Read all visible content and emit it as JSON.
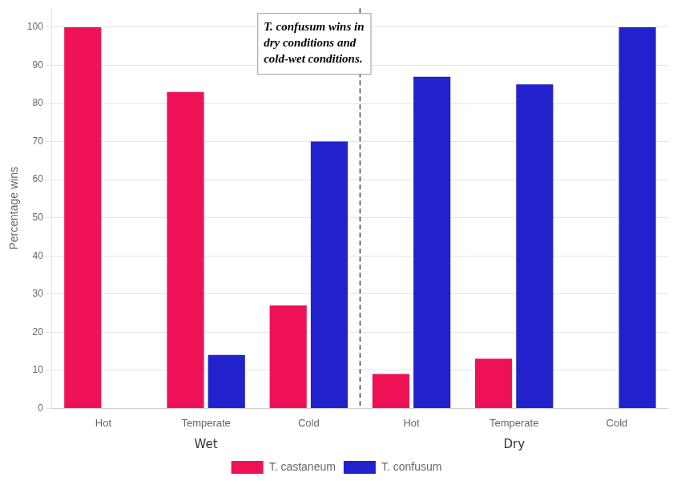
{
  "chart_data": {
    "type": "bar",
    "categories": [
      "Hot",
      "Temperate",
      "Cold",
      "Hot",
      "Temperate",
      "Cold"
    ],
    "group_labels": [
      "Wet",
      "Dry"
    ],
    "series": [
      {
        "name": "T. castaneum",
        "color": "#ee1155",
        "values": [
          100,
          83,
          27,
          9,
          13,
          0
        ]
      },
      {
        "name": "T. confusum",
        "color": "#2222cc",
        "values": [
          0,
          14,
          70,
          87,
          85,
          100
        ]
      }
    ],
    "y_label": "Percentage wins",
    "annotation": "T. confusum wins in\ndry conditions and\ncold-wet conditions.",
    "ylim": [
      0,
      105
    ],
    "yticks": [
      0,
      10,
      20,
      30,
      40,
      50,
      60,
      70,
      80,
      90,
      100
    ],
    "grid": true,
    "legend": "bottom"
  }
}
